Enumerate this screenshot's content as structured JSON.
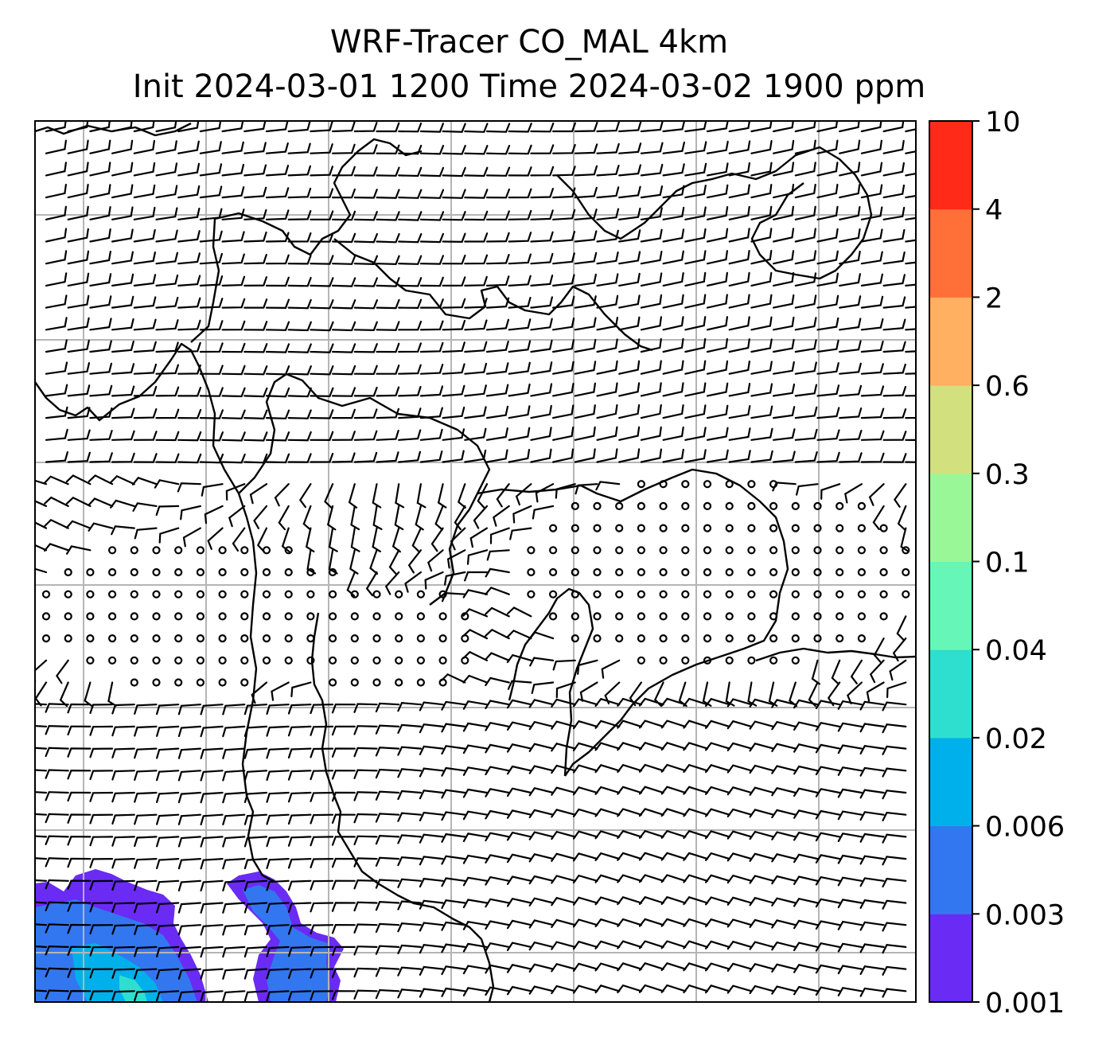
{
  "title": {
    "line1": "WRF-Tracer CO_MAL 4km",
    "line2": "Init 2024-03-01 1200 Time 2024-03-02 1900 ppm"
  },
  "colorbar": {
    "levels": [
      "0.001",
      "0.003",
      "0.006",
      "0.02",
      "0.04",
      "0.1",
      "0.3",
      "0.6",
      "2",
      "4",
      "10"
    ],
    "colors": [
      "#6a2bf5",
      "#3377f0",
      "#00b0ea",
      "#2edfd0",
      "#66f7b8",
      "#99f797",
      "#d2e07e",
      "#ffb060",
      "#ff7038",
      "#ff2a18"
    ]
  },
  "map": {
    "layers": [
      "coastlines",
      "lat-lon gridlines",
      "wind barbs",
      "CO tracer concentration shading"
    ],
    "grid_color": "#b5b5b5",
    "wind_barbs": {
      "calm_markers": "circles",
      "regime": "easterly flow north of the domain center, westerly flow in the south, calm zone across the middle"
    },
    "plume": {
      "description": "low tracer concentrations in the southwest corner and south of the central peninsula",
      "levels_present": [
        "0.001",
        "0.003",
        "0.006",
        "0.02"
      ]
    }
  }
}
